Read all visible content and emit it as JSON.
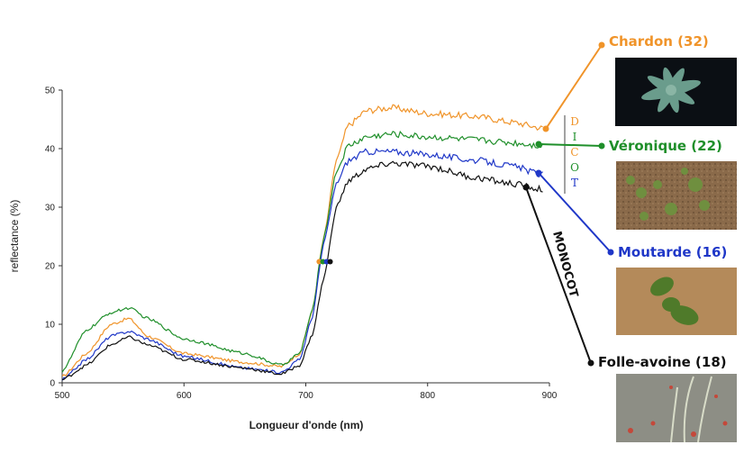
{
  "chart_data": {
    "type": "line",
    "title": "",
    "xlabel": "Longueur d'onde (nm)",
    "ylabel": "reflectance (%)",
    "xlim": [
      500,
      900
    ],
    "ylim": [
      0,
      50
    ],
    "xticks": [
      500,
      600,
      700,
      800,
      900
    ],
    "yticks": [
      0,
      10,
      20,
      30,
      40,
      50
    ],
    "grid": false,
    "legend": "right, leader lines with photos",
    "series": [
      {
        "name": "Chardon (32)",
        "color": "#f0942a",
        "x": [
          500,
          520,
          540,
          555,
          570,
          600,
          650,
          680,
          695,
          705,
          715,
          725,
          735,
          750,
          770,
          800,
          840,
          870,
          895
        ],
        "y": [
          1,
          5,
          10,
          11,
          8,
          5,
          3.5,
          2.8,
          5,
          12,
          25,
          38,
          44,
          46.5,
          47,
          46,
          45.5,
          44.5,
          43.5
        ]
      },
      {
        "name": "Véronique (22)",
        "color": "#1f8f2a",
        "x": [
          500,
          520,
          540,
          555,
          570,
          600,
          650,
          680,
          695,
          705,
          715,
          725,
          735,
          750,
          770,
          800,
          840,
          870,
          895
        ],
        "y": [
          2,
          9,
          12,
          12.8,
          11,
          7.5,
          5,
          3,
          5,
          12,
          25,
          36,
          40.5,
          42,
          42.5,
          42,
          41.5,
          41,
          40.5
        ]
      },
      {
        "name": "Moutarde (16)",
        "color": "#1f37c8",
        "x": [
          500,
          520,
          540,
          555,
          570,
          600,
          650,
          680,
          695,
          705,
          715,
          725,
          735,
          750,
          770,
          800,
          840,
          870,
          895
        ],
        "y": [
          0.5,
          4,
          8,
          8.8,
          7.5,
          4.5,
          2.5,
          1.8,
          4,
          11,
          24,
          34,
          38,
          39.5,
          39.5,
          39,
          38,
          37,
          35.5
        ]
      },
      {
        "name": "Folle-avoine (18)",
        "color": "#111111",
        "x": [
          500,
          520,
          540,
          555,
          570,
          600,
          650,
          680,
          695,
          705,
          715,
          725,
          735,
          750,
          770,
          800,
          840,
          870,
          895
        ],
        "y": [
          0.5,
          3,
          6.5,
          7.8,
          6.5,
          4,
          2.5,
          1.5,
          3,
          8,
          18,
          30,
          34.5,
          36.5,
          37.5,
          37,
          35,
          34,
          33
        ]
      }
    ],
    "group_labels": [
      {
        "text": "DICOT",
        "letters": [
          "D",
          "I",
          "C",
          "O",
          "T"
        ]
      },
      {
        "text": "MONOCOT"
      }
    ]
  },
  "legend_items": [
    {
      "label": "Chardon (32)",
      "color": "#f0942a",
      "photo": "thistle-seedling-photo"
    },
    {
      "label": "Véronique (22)",
      "color": "#1f8f2a",
      "photo": "speedwell-seedlings-photo"
    },
    {
      "label": "Moutarde (16)",
      "color": "#1f37c8",
      "photo": "mustard-seedling-photo"
    },
    {
      "label": "Folle-avoine (18)",
      "color": "#111111",
      "photo": "wild-oat-photo"
    }
  ],
  "colors": {
    "dicot_letters": [
      "#f0942a",
      "#1f8f2a",
      "#f0942a",
      "#1f8f2a",
      "#1f37c8"
    ]
  }
}
